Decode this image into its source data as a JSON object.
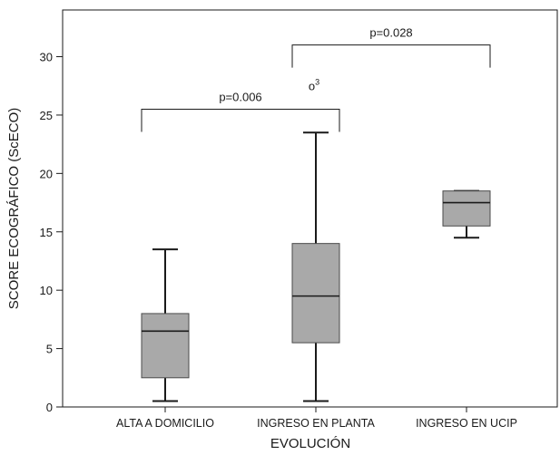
{
  "chart_data": {
    "type": "box",
    "xlabel": "EVOLUCIÓN",
    "ylabel": "SCORE ECOGRÁFICO (ScECO)",
    "ylim": [
      0,
      34
    ],
    "yticks": [
      0,
      5,
      10,
      15,
      20,
      25,
      30
    ],
    "grid": false,
    "box_fill": "#a9a9a9",
    "categories": [
      "ALTA A DOMICILIO",
      "INGRESO EN PLANTA",
      "INGRESO EN UCIP"
    ],
    "boxes": [
      {
        "category": "ALTA A DOMICILIO",
        "whisker_low": 0.5,
        "q1": 2.5,
        "median": 6.5,
        "q3": 8.0,
        "whisker_high": 13.5
      },
      {
        "category": "INGRESO EN PLANTA",
        "whisker_low": 0.5,
        "q1": 5.5,
        "median": 9.5,
        "q3": 14.0,
        "whisker_high": 23.5
      },
      {
        "category": "INGRESO EN UCIP",
        "whisker_low": 14.5,
        "q1": 15.5,
        "median": 17.5,
        "q3": 18.5,
        "whisker_high": 18.5
      }
    ],
    "outliers": [
      {
        "category": "INGRESO EN PLANTA",
        "value": 27.5,
        "label": "o",
        "case": "3"
      }
    ],
    "comparisons": [
      {
        "from": "ALTA A DOMICILIO",
        "to": "INGRESO EN PLANTA",
        "y": 25.5,
        "label": "p=0.006"
      },
      {
        "from": "INGRESO EN PLANTA",
        "to": "INGRESO EN UCIP",
        "y": 31.0,
        "label": "p=0.028"
      }
    ]
  }
}
